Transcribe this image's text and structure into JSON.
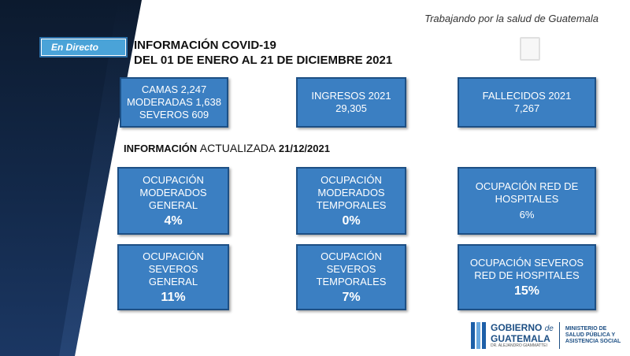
{
  "header": {
    "tagline": "Trabajando por la salud de Guatemala",
    "live_badge": "En Directo",
    "title_line1": "INFORMACIÓN COVID-19",
    "title_line2": "DEL  01 DE ENERO AL 21 DE DICIEMBRE 2021"
  },
  "summary": {
    "camas": {
      "line1": "CAMAS 2,247",
      "line2": "MODERADAS 1,638",
      "line3": "SEVEROS 609"
    },
    "ingresos": {
      "label": "INGRESOS 2021",
      "value": "29,305"
    },
    "fallecidos": {
      "label": "FALLECIDOS 2021",
      "value": "7,267"
    }
  },
  "update": {
    "prefix": "INFORMACIÓN",
    "middle": "ACTUALIZADA",
    "date": "21/12/2021"
  },
  "occupancy": {
    "moderados_general": {
      "label": "OCUPACIÓN MODERADOS GENERAL",
      "value": "4%"
    },
    "moderados_temporales": {
      "label": "OCUPACIÓN MODERADOS TEMPORALES",
      "value": "0%"
    },
    "red_hospitales": {
      "label": "OCUPACIÓN RED DE HOSPITALES",
      "value": "6%"
    },
    "severos_general": {
      "label": "OCUPACIÓN SEVEROS GENERAL",
      "value": "11%"
    },
    "severos_temporales": {
      "label": "OCUPACIÓN SEVEROS TEMPORALES",
      "value": "7%"
    },
    "severos_red": {
      "label": "OCUPACIÓN SEVEROS RED DE HOSPITALES",
      "value": "15%"
    }
  },
  "footer": {
    "gov_line1": "GOBIERNO",
    "gov_de": "de",
    "gov_line2": "GUATEMALA",
    "gov_sub": "DR. ALEJANDRO GIAMMATTEI",
    "ministry_line1": "MINISTERIO DE",
    "ministry_line2": "SALUD PÚBLICA Y",
    "ministry_line3": "ASISTENCIA SOCIAL"
  },
  "colors": {
    "box_fill": "#3b7fc2",
    "box_border": "#1d4f84",
    "badge": "#4aa3d8",
    "panel": "#13294a"
  }
}
